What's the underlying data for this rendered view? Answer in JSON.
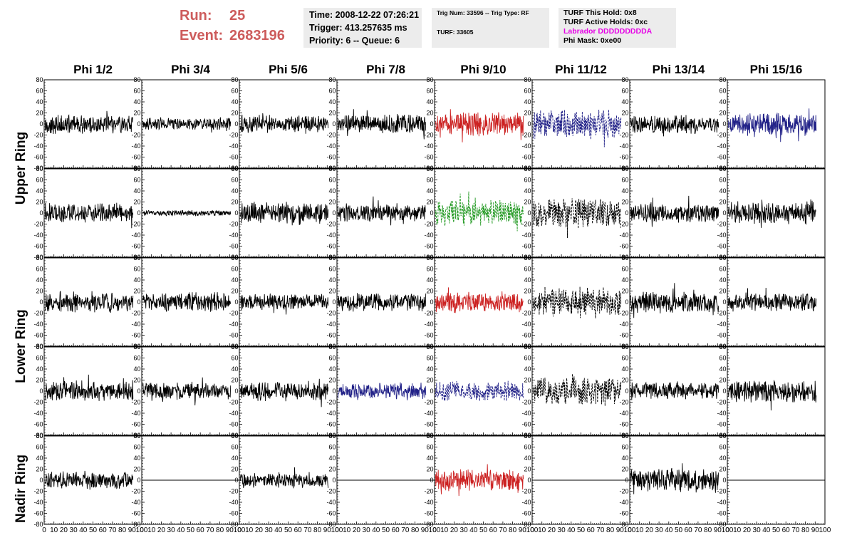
{
  "run": {
    "label": "Run:",
    "value": "25"
  },
  "event": {
    "label": "Event:",
    "value": "2683196"
  },
  "time_box": {
    "time": "Time: 2008-12-22 07:26:21",
    "trigger": "Trigger: 413.257635 ms",
    "priority": "Priority: 6 -- Queue: 6"
  },
  "trig_box": {
    "trig": "Trig Num: 33596 -- Trig Type: RF",
    "turf": "TURF: 33605"
  },
  "turf_box": {
    "hold": "TURF This Hold: 0x8",
    "active": "TURF Active Holds: 0xc",
    "labrador": "Labrador DDDDDDDDDA",
    "phimask": "Phi Mask: 0xe00"
  },
  "columns": [
    "Phi 1/2",
    "Phi 3/4",
    "Phi 5/6",
    "Phi 7/8",
    "Phi 9/10",
    "Phi 11/12",
    "Phi 13/14",
    "Phi 15/16"
  ],
  "rings": [
    "Upper Ring",
    "Lower Ring",
    "Nadir Ring"
  ],
  "colors": {
    "run_text": "#cd5c5c",
    "labrador_text": "#e600e6",
    "trace_default": "#000000",
    "trace_red": "#cc2222",
    "trace_blue": "#222288",
    "trace_green": "#229922"
  },
  "chart_data": {
    "type": "line",
    "x_range": [
      0,
      100
    ],
    "y_range": [
      -80,
      80
    ],
    "y_ticks": [
      "80",
      "60",
      "40",
      "20",
      "0",
      "-20",
      "-40",
      "-60",
      "-80"
    ],
    "x_ticks": [
      "0",
      "10",
      "20",
      "30",
      "40",
      "50",
      "60",
      "70",
      "80",
      "90",
      "100"
    ],
    "grid": false,
    "panels": [
      {
        "row": 0,
        "col": 0,
        "color": "black",
        "style": "solid",
        "amp": 14
      },
      {
        "row": 0,
        "col": 1,
        "color": "black",
        "style": "solid",
        "amp": 9
      },
      {
        "row": 0,
        "col": 2,
        "color": "black",
        "style": "solid",
        "amp": 13
      },
      {
        "row": 0,
        "col": 3,
        "color": "black",
        "style": "solid",
        "amp": 14
      },
      {
        "row": 0,
        "col": 4,
        "color": "red",
        "style": "solid",
        "amp": 17
      },
      {
        "row": 0,
        "col": 5,
        "color": "blue",
        "style": "dashed",
        "amp": 20
      },
      {
        "row": 0,
        "col": 6,
        "color": "black",
        "style": "solid",
        "amp": 13
      },
      {
        "row": 0,
        "col": 7,
        "color": "blue",
        "style": "solid",
        "amp": 16
      },
      {
        "row": 1,
        "col": 0,
        "color": "black",
        "style": "solid",
        "amp": 14
      },
      {
        "row": 1,
        "col": 1,
        "color": "black",
        "style": "solid",
        "amp": 4
      },
      {
        "row": 1,
        "col": 2,
        "color": "black",
        "style": "solid",
        "amp": 15
      },
      {
        "row": 1,
        "col": 3,
        "color": "black",
        "style": "solid",
        "amp": 13
      },
      {
        "row": 1,
        "col": 4,
        "color": "green",
        "style": "dashed",
        "amp": 18
      },
      {
        "row": 1,
        "col": 5,
        "color": "black",
        "style": "dashed",
        "amp": 22
      },
      {
        "row": 1,
        "col": 6,
        "color": "black",
        "style": "solid",
        "amp": 13
      },
      {
        "row": 1,
        "col": 7,
        "color": "black",
        "style": "solid",
        "amp": 15
      },
      {
        "row": 2,
        "col": 0,
        "color": "black",
        "style": "solid",
        "amp": 14
      },
      {
        "row": 2,
        "col": 1,
        "color": "black",
        "style": "solid",
        "amp": 14
      },
      {
        "row": 2,
        "col": 2,
        "color": "black",
        "style": "solid",
        "amp": 12
      },
      {
        "row": 2,
        "col": 3,
        "color": "black",
        "style": "solid",
        "amp": 13
      },
      {
        "row": 2,
        "col": 4,
        "color": "red",
        "style": "solid",
        "amp": 15
      },
      {
        "row": 2,
        "col": 5,
        "color": "black",
        "style": "dashed",
        "amp": 20
      },
      {
        "row": 2,
        "col": 6,
        "color": "black",
        "style": "solid",
        "amp": 15
      },
      {
        "row": 2,
        "col": 7,
        "color": "black",
        "style": "solid",
        "amp": 13
      },
      {
        "row": 3,
        "col": 0,
        "color": "black",
        "style": "solid",
        "amp": 15
      },
      {
        "row": 3,
        "col": 1,
        "color": "black",
        "style": "solid",
        "amp": 13
      },
      {
        "row": 3,
        "col": 2,
        "color": "black",
        "style": "solid",
        "amp": 14
      },
      {
        "row": 3,
        "col": 3,
        "color": "blue",
        "style": "solid",
        "amp": 12
      },
      {
        "row": 3,
        "col": 4,
        "color": "blue",
        "style": "dashed",
        "amp": 14
      },
      {
        "row": 3,
        "col": 5,
        "color": "black",
        "style": "dashed",
        "amp": 20
      },
      {
        "row": 3,
        "col": 6,
        "color": "black",
        "style": "solid",
        "amp": 13
      },
      {
        "row": 3,
        "col": 7,
        "color": "black",
        "style": "solid",
        "amp": 16
      },
      {
        "row": 4,
        "col": 0,
        "color": "black",
        "style": "solid",
        "amp": 13
      },
      {
        "row": 4,
        "col": 1,
        "color": "black",
        "style": "flat",
        "amp": 0
      },
      {
        "row": 4,
        "col": 2,
        "color": "black",
        "style": "solid",
        "amp": 11
      },
      {
        "row": 4,
        "col": 3,
        "color": "black",
        "style": "flat",
        "amp": 0
      },
      {
        "row": 4,
        "col": 4,
        "color": "red",
        "style": "solid",
        "amp": 15
      },
      {
        "row": 4,
        "col": 5,
        "color": "black",
        "style": "flat",
        "amp": 0
      },
      {
        "row": 4,
        "col": 6,
        "color": "black",
        "style": "solid",
        "amp": 17
      },
      {
        "row": 4,
        "col": 7,
        "color": "black",
        "style": "flat",
        "amp": 0
      }
    ]
  }
}
